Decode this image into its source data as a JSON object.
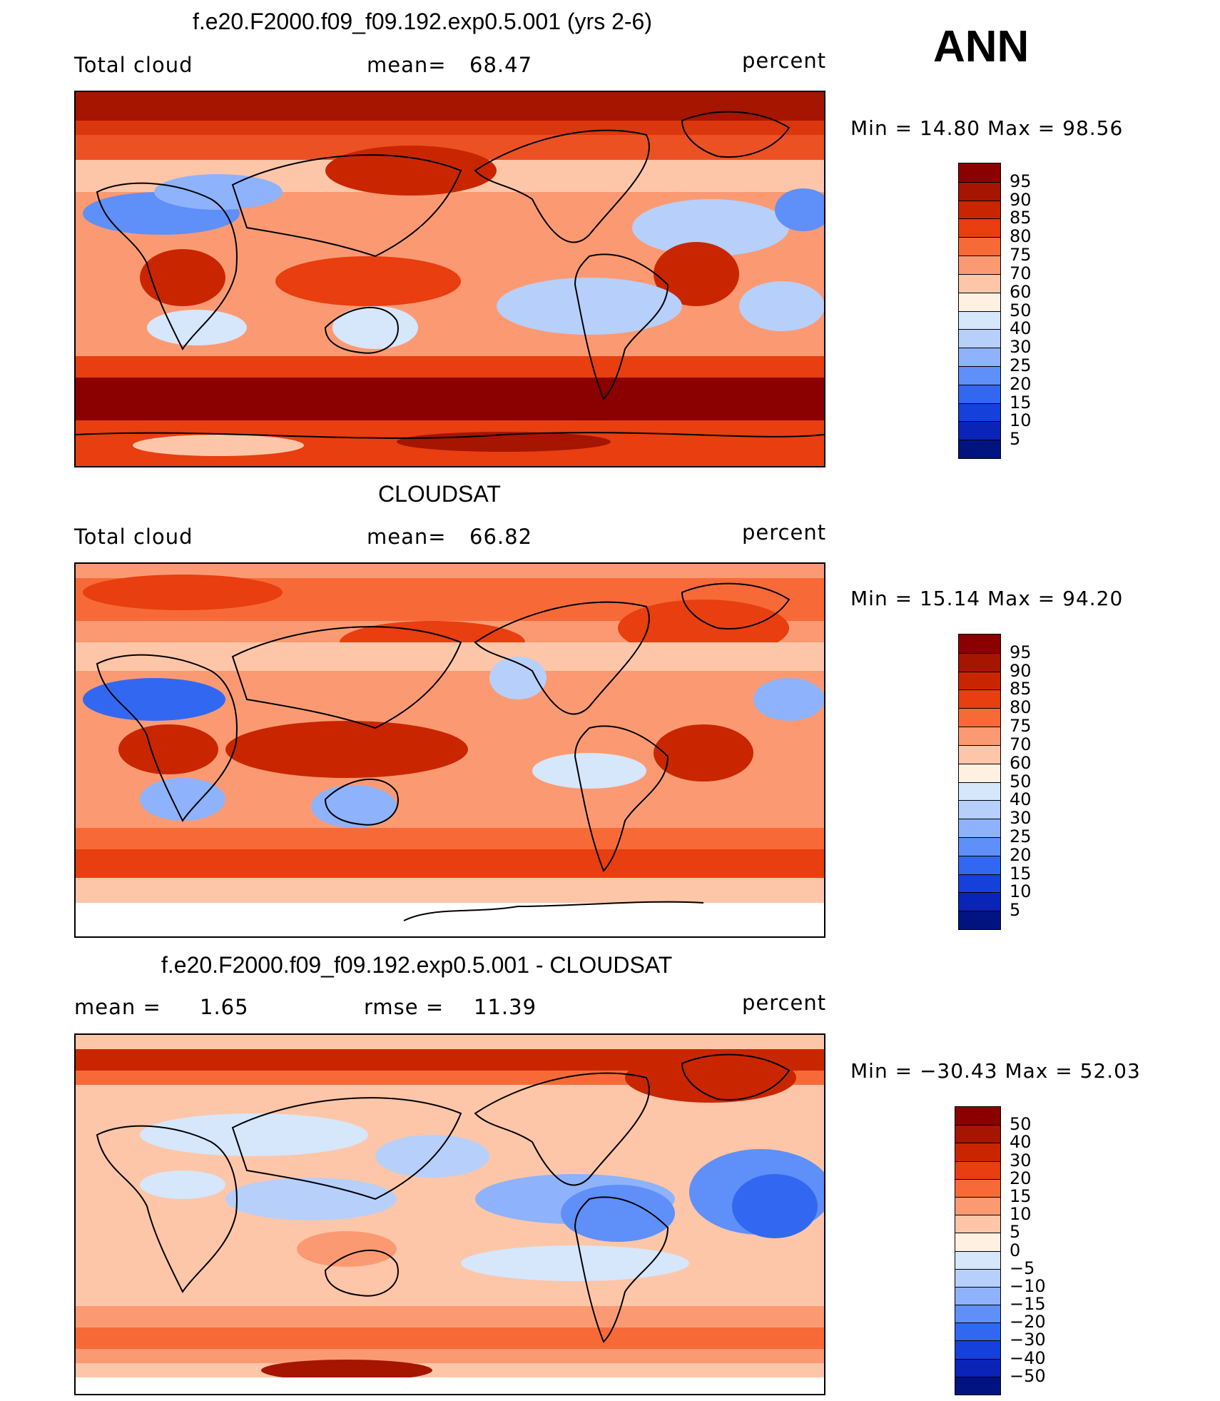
{
  "season": "ANN",
  "panels": [
    {
      "id": "model",
      "title": "f.e20.F2000.f09_f09.192.exp0.5.001 (yrs 2-6)",
      "left_label": "Total cloud",
      "center_label": "mean=",
      "center_value": "68.47",
      "units": "percent",
      "minmax": "Min =   14.80  Max =   98.56",
      "colorbar_labels": [
        "95",
        "90",
        "85",
        "80",
        "75",
        "70",
        "60",
        "50",
        "40",
        "30",
        "25",
        "20",
        "15",
        "10",
        "5"
      ],
      "colorbar_colors": [
        "#8b0000",
        "#a51500",
        "#c92600",
        "#e83e10",
        "#f76a38",
        "#fb9a72",
        "#fdc6a8",
        "#fff0e2",
        "#d6e6fb",
        "#b7cffb",
        "#8eb2fb",
        "#5f8ff9",
        "#3268f1",
        "#1541da",
        "#0a24b8",
        "#00137f"
      ]
    },
    {
      "id": "obs",
      "title": "CLOUDSAT",
      "left_label": "Total cloud",
      "center_label": "mean=",
      "center_value": "66.82",
      "units": "percent",
      "minmax": "Min =   15.14  Max =   94.20",
      "colorbar_labels": [
        "95",
        "90",
        "85",
        "80",
        "75",
        "70",
        "60",
        "50",
        "40",
        "30",
        "25",
        "20",
        "15",
        "10",
        "5"
      ],
      "colorbar_colors": [
        "#8b0000",
        "#a51500",
        "#c92600",
        "#e83e10",
        "#f76a38",
        "#fb9a72",
        "#fdc6a8",
        "#fff0e2",
        "#d6e6fb",
        "#b7cffb",
        "#8eb2fb",
        "#5f8ff9",
        "#3268f1",
        "#1541da",
        "#0a24b8",
        "#00137f"
      ]
    },
    {
      "id": "diff",
      "title": "f.e20.F2000.f09_f09.192.exp0.5.001 - CLOUDSAT",
      "left_label": "mean =",
      "left_value": "1.65",
      "center_label": "rmse =",
      "center_value": "11.39",
      "units": "percent",
      "minmax": "Min = −30.43  Max =   52.03",
      "colorbar_labels": [
        "50",
        "40",
        "30",
        "20",
        "15",
        "10",
        "5",
        "0",
        "−5",
        "−10",
        "−15",
        "−20",
        "−30",
        "−40",
        "−50"
      ],
      "colorbar_colors": [
        "#8b0000",
        "#a51500",
        "#c92600",
        "#e83e10",
        "#f76a38",
        "#fb9a72",
        "#fdc6a8",
        "#fff0e2",
        "#d6e6fb",
        "#b7cffb",
        "#8eb2fb",
        "#5f8ff9",
        "#3268f1",
        "#1541da",
        "#0a24b8",
        "#00137f"
      ]
    }
  ]
}
